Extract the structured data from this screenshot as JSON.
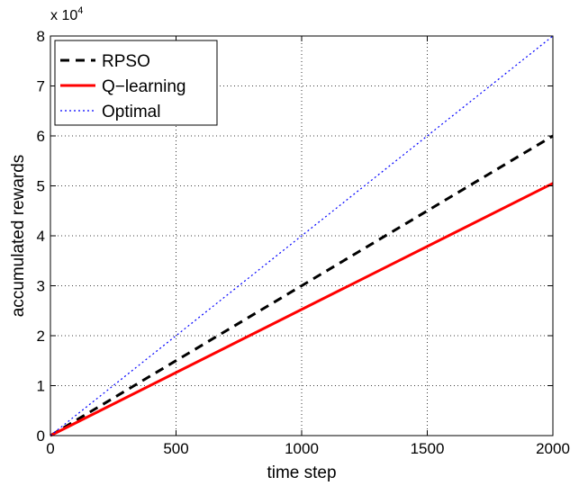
{
  "chart_data": {
    "type": "line",
    "xlabel": "time step",
    "ylabel": "accumulated rewards",
    "xlim": [
      0,
      2000
    ],
    "ylim": [
      0,
      80000
    ],
    "x_ticks": [
      0,
      500,
      1000,
      1500,
      2000
    ],
    "x_tick_labels": [
      "0",
      "500",
      "1000",
      "1500",
      "2000"
    ],
    "y_ticks": [
      0,
      10000,
      20000,
      30000,
      40000,
      50000,
      60000,
      70000,
      80000
    ],
    "y_tick_labels": [
      "0",
      "1",
      "2",
      "3",
      "4",
      "5",
      "6",
      "7",
      "8"
    ],
    "y_multiplier_base": "x 10",
    "y_multiplier_exp": "4",
    "grid": true,
    "legend_position": "top-left",
    "series": [
      {
        "name": "RPSO",
        "color": "#000000",
        "style": "dashed",
        "x": [
          0,
          2000
        ],
        "y": [
          0,
          60000
        ]
      },
      {
        "name": "Q−learning",
        "color": "#ff0000",
        "style": "solid",
        "x": [
          0,
          2000
        ],
        "y": [
          0,
          50500
        ]
      },
      {
        "name": "Optimal",
        "color": "#0000ff",
        "style": "dotted",
        "x": [
          0,
          2000
        ],
        "y": [
          0,
          80000
        ]
      }
    ]
  }
}
